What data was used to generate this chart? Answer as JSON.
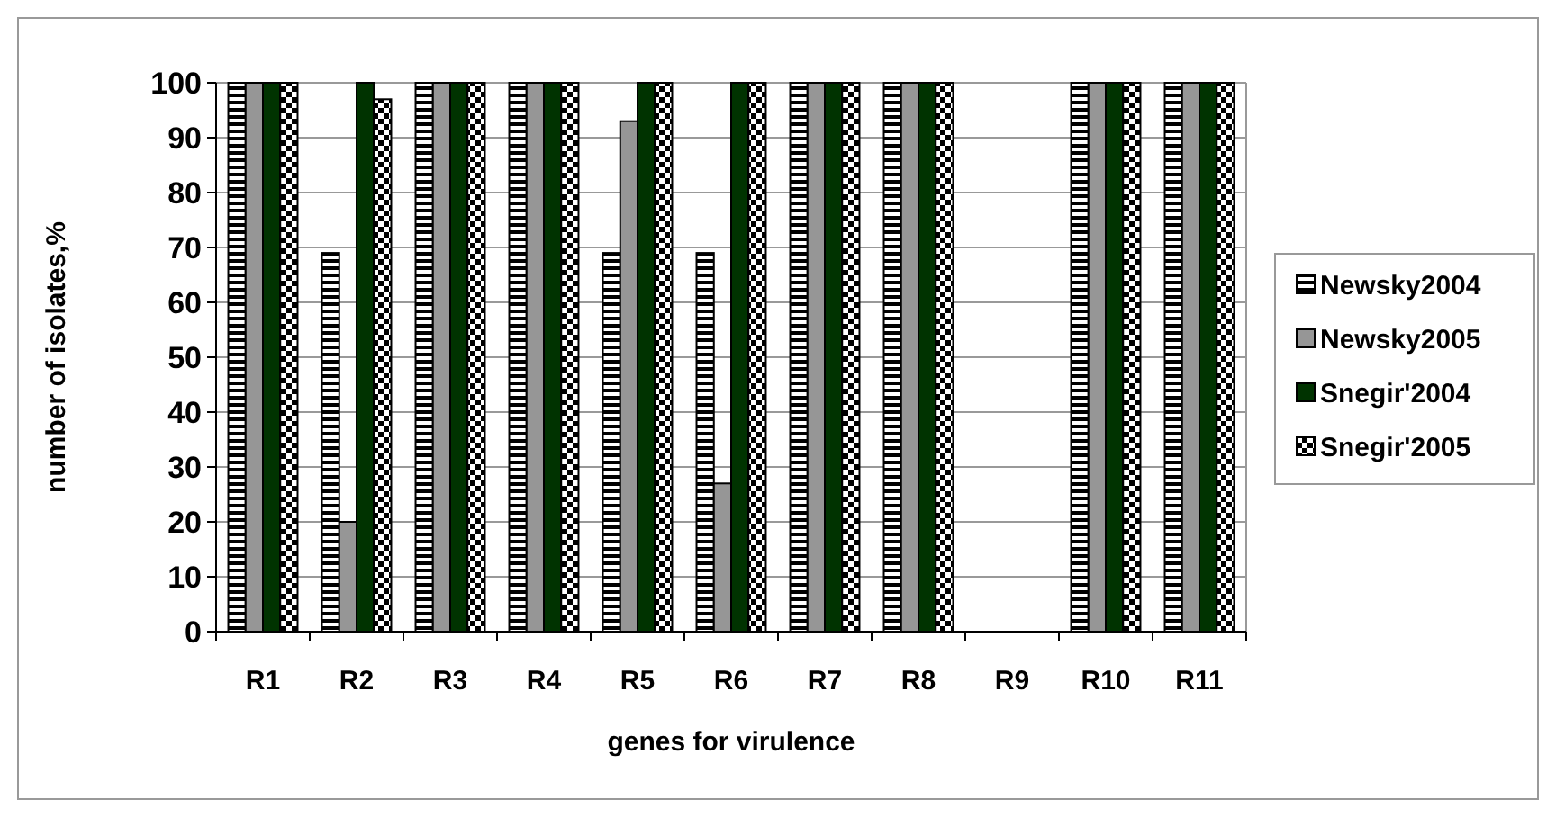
{
  "chart_data": {
    "type": "bar",
    "xlabel": "genes for virulence",
    "ylabel": "number of isolates,%",
    "categories": [
      "R1",
      "R2",
      "R3",
      "R4",
      "R5",
      "R6",
      "R7",
      "R8",
      "R9",
      "R10",
      "R11"
    ],
    "series": [
      {
        "name": "Newsky2004",
        "color": "#000000",
        "values": [
          100,
          69,
          100,
          100,
          69,
          69,
          100,
          100,
          0,
          100,
          100
        ]
      },
      {
        "name": "Newsky2005",
        "color": "#969696",
        "values": [
          100,
          20,
          100,
          100,
          93,
          27,
          100,
          100,
          0,
          100,
          100
        ]
      },
      {
        "name": "Snegir'2004",
        "color": "#003300",
        "values": [
          100,
          100,
          100,
          100,
          100,
          100,
          100,
          100,
          0,
          100,
          100
        ]
      },
      {
        "name": "Snegir'2005",
        "color": "#000000",
        "values": [
          100,
          97,
          100,
          100,
          100,
          100,
          100,
          100,
          0,
          100,
          100
        ]
      }
    ],
    "ylim": [
      0,
      100
    ],
    "yticks": [
      0,
      10,
      20,
      30,
      40,
      50,
      60,
      70,
      80,
      90,
      100
    ],
    "grid": "y",
    "legend": "right"
  }
}
